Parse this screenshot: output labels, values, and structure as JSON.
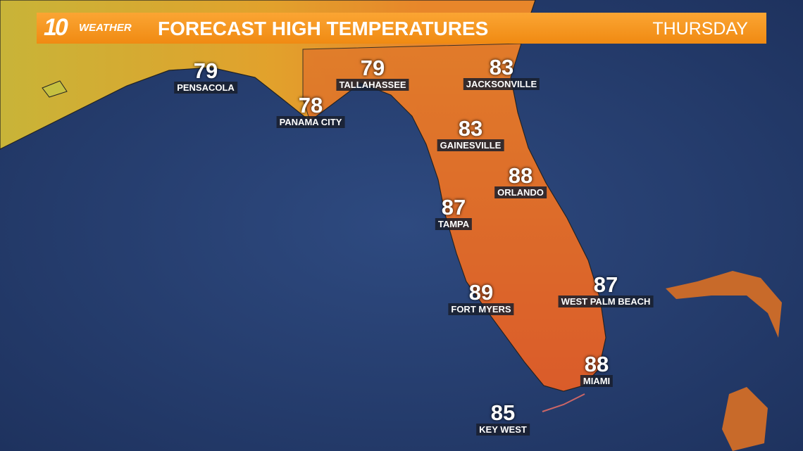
{
  "header": {
    "logo_number": "10",
    "logo_word": "WEATHER",
    "title": "FORECAST HIGH TEMPERATURES",
    "day": "THURSDAY"
  },
  "cities": [
    {
      "name": "PENSACOLA",
      "temp": 79
    },
    {
      "name": "TALLAHASSEE",
      "temp": 79
    },
    {
      "name": "PANAMA CITY",
      "temp": 78
    },
    {
      "name": "JACKSONVILLE",
      "temp": 83
    },
    {
      "name": "GAINESVILLE",
      "temp": 83
    },
    {
      "name": "ORLANDO",
      "temp": 88
    },
    {
      "name": "TAMPA",
      "temp": 87
    },
    {
      "name": "WEST PALM BEACH",
      "temp": 87
    },
    {
      "name": "FORT MYERS",
      "temp": 89
    },
    {
      "name": "MIAMI",
      "temp": 88
    },
    {
      "name": "KEY WEST",
      "temp": 85
    }
  ]
}
